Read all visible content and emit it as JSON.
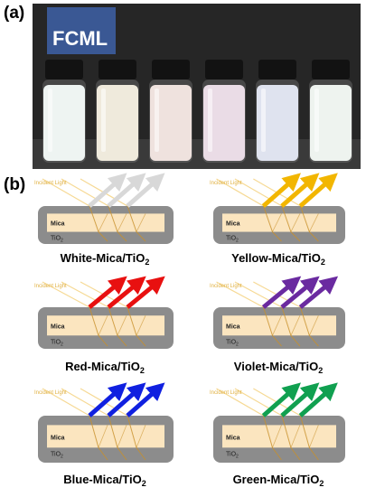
{
  "panel_a": {
    "label": "(a)",
    "logo_text": "FCML",
    "vial_colors": [
      "#eef4f2",
      "#efeadc",
      "#efe2de",
      "#eadce6",
      "#dfe3ef",
      "#eef3ef"
    ]
  },
  "panel_b": {
    "label": "(b)",
    "diagrams": [
      {
        "incident": "Incident Light",
        "mica": "Mica",
        "tio2": "TiO",
        "tio2_sub": "2",
        "caption_main": "White-Mica/TiO",
        "caption_sub": "2",
        "arrow_color": "#d8d8d8"
      },
      {
        "incident": "Incident Light",
        "mica": "Mica",
        "tio2": "TiO",
        "tio2_sub": "2",
        "caption_main": "Yellow-Mica/TiO",
        "caption_sub": "2",
        "arrow_color": "#f2b600"
      },
      {
        "incident": "Incident Light",
        "mica": "Mica",
        "tio2": "TiO",
        "tio2_sub": "2",
        "caption_main": "Red-Mica/TiO",
        "caption_sub": "2",
        "arrow_color": "#e81010"
      },
      {
        "incident": "Incident Light",
        "mica": "Mica",
        "tio2": "TiO",
        "tio2_sub": "2",
        "caption_main": "Violet-Mica/TiO",
        "caption_sub": "2",
        "arrow_color": "#6a2aa0"
      },
      {
        "incident": "Incident Light",
        "mica": "Mica",
        "tio2": "TiO",
        "tio2_sub": "2",
        "caption_main": "Blue-Mica/TiO",
        "caption_sub": "2",
        "arrow_color": "#1020e0"
      },
      {
        "incident": "Incident Light",
        "mica": "Mica",
        "tio2": "TiO",
        "tio2_sub": "2",
        "caption_main": "Green-Mica/TiO",
        "caption_sub": "2",
        "arrow_color": "#10a050"
      }
    ]
  }
}
